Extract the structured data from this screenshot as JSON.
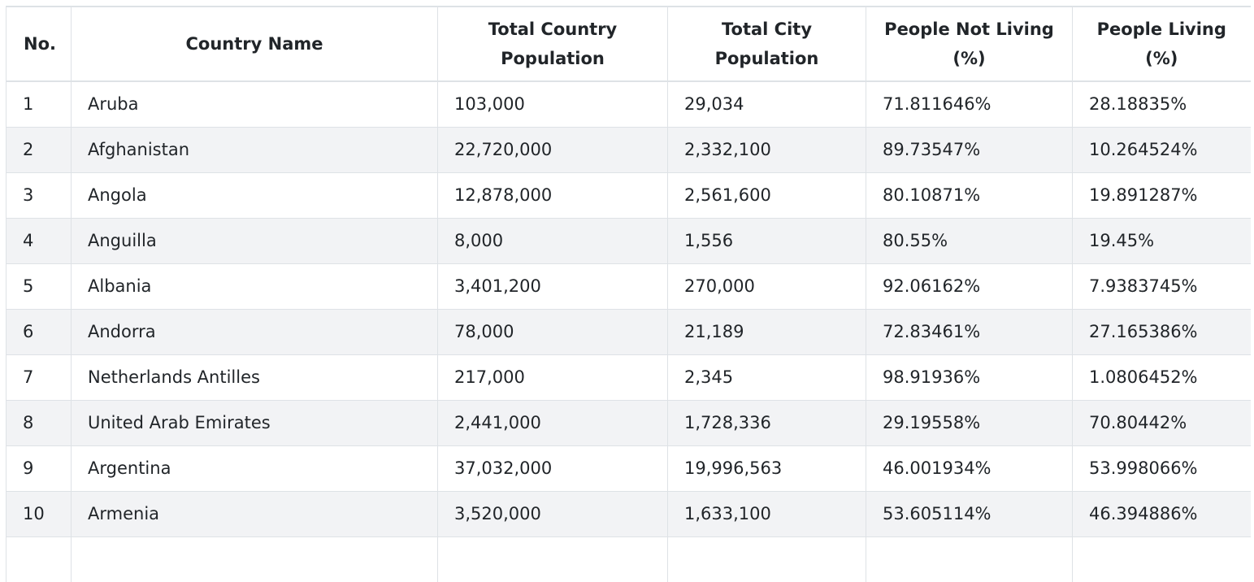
{
  "table": {
    "headers": {
      "no": "No.",
      "country_name": "Country Name",
      "total_country_population": [
        "Total Country",
        "Population"
      ],
      "total_city_population": [
        "Total City",
        "Population"
      ],
      "people_not_living": [
        "People Not Living",
        "(%)"
      ],
      "people_living": [
        "People Living",
        "(%)"
      ]
    },
    "rows": [
      {
        "no": "1",
        "country": "Aruba",
        "total": "103,000",
        "city": "29,034",
        "not_living": "71.811646%",
        "living": "28.18835%"
      },
      {
        "no": "2",
        "country": "Afghanistan",
        "total": "22,720,000",
        "city": "2,332,100",
        "not_living": "89.73547%",
        "living": "10.264524%"
      },
      {
        "no": "3",
        "country": "Angola",
        "total": "12,878,000",
        "city": "2,561,600",
        "not_living": "80.10871%",
        "living": "19.891287%"
      },
      {
        "no": "4",
        "country": "Anguilla",
        "total": "8,000",
        "city": "1,556",
        "not_living": "80.55%",
        "living": "19.45%"
      },
      {
        "no": "5",
        "country": "Albania",
        "total": "3,401,200",
        "city": "270,000",
        "not_living": "92.06162%",
        "living": "7.9383745%"
      },
      {
        "no": "6",
        "country": "Andorra",
        "total": "78,000",
        "city": "21,189",
        "not_living": "72.83461%",
        "living": "27.165386%"
      },
      {
        "no": "7",
        "country": "Netherlands Antilles",
        "total": "217,000",
        "city": "2,345",
        "not_living": "98.91936%",
        "living": "1.0806452%"
      },
      {
        "no": "8",
        "country": "United Arab Emirates",
        "total": "2,441,000",
        "city": "1,728,336",
        "not_living": "29.19558%",
        "living": "70.80442%"
      },
      {
        "no": "9",
        "country": "Argentina",
        "total": "37,032,000",
        "city": "19,996,563",
        "not_living": "46.001934%",
        "living": "53.998066%"
      },
      {
        "no": "10",
        "country": "Armenia",
        "total": "3,520,000",
        "city": "1,633,100",
        "not_living": "53.605114%",
        "living": "46.394886%"
      },
      {
        "no": "",
        "country": "",
        "total": "",
        "city": "",
        "not_living": "",
        "living": ""
      }
    ]
  }
}
